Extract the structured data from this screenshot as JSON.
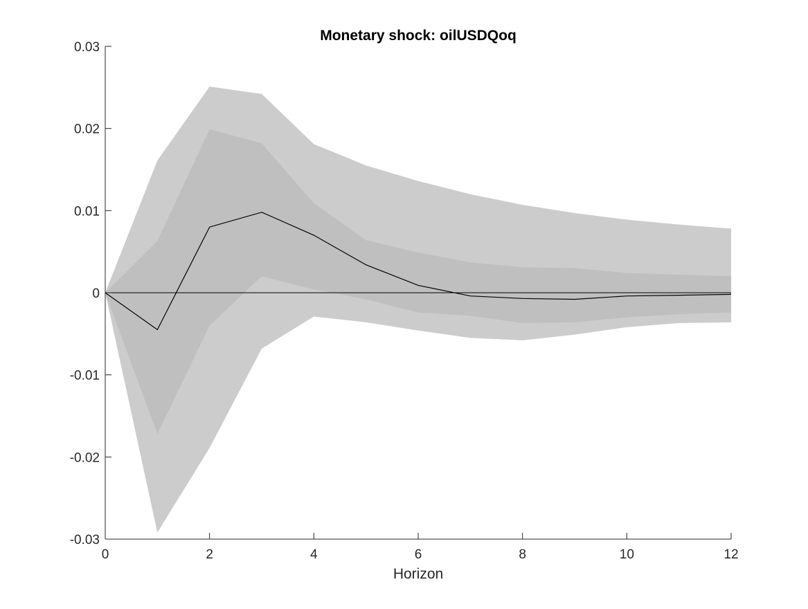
{
  "chart_data": {
    "type": "area",
    "title": "Monetary shock: oilUSDQoq",
    "xlabel": "Horizon",
    "ylabel": "",
    "xlim": [
      0,
      12
    ],
    "ylim": [
      -0.03,
      0.03
    ],
    "x_ticks": [
      0,
      2,
      4,
      6,
      8,
      10,
      12
    ],
    "x_tick_labels": [
      "0",
      "2",
      "4",
      "6",
      "8",
      "10",
      "12"
    ],
    "y_ticks": [
      -0.03,
      -0.02,
      -0.01,
      0,
      0.01,
      0.02,
      0.03
    ],
    "y_tick_labels": [
      "-0.03",
      "-0.02",
      "-0.01",
      "0",
      "0.01",
      "0.02",
      "0.03"
    ],
    "grid": false,
    "legend": "none",
    "x": [
      0,
      1,
      2,
      3,
      4,
      5,
      6,
      7,
      8,
      9,
      10,
      11,
      12
    ],
    "bands": [
      {
        "level": "outer",
        "color": "#cccccc",
        "upper": [
          0,
          0.0161,
          0.0251,
          0.0242,
          0.0181,
          0.0155,
          0.0136,
          0.012,
          0.0107,
          0.0097,
          0.0089,
          0.0083,
          0.0078
        ],
        "lower": [
          0,
          -0.0292,
          -0.0189,
          -0.0068,
          -0.0029,
          -0.0036,
          -0.0046,
          -0.0055,
          -0.0058,
          -0.0051,
          -0.0042,
          -0.0037,
          -0.0036
        ]
      },
      {
        "level": "inner",
        "color": "#bfbfbf",
        "upper": [
          0,
          0.0063,
          0.0199,
          0.0182,
          0.0109,
          0.0064,
          0.0049,
          0.0037,
          0.0031,
          0.003,
          0.0024,
          0.0022,
          0.002
        ],
        "lower": [
          0,
          -0.0172,
          -0.004,
          0.002,
          0.0004,
          -0.0008,
          -0.0024,
          -0.0028,
          -0.0037,
          -0.0036,
          -0.003,
          -0.0026,
          -0.0024
        ]
      }
    ],
    "series": [
      {
        "values": [
          0,
          -0.0045,
          0.008,
          0.0098,
          0.007,
          0.0034,
          0.0009,
          -0.0004,
          -0.0007,
          -0.0008,
          -0.0004,
          -0.0003,
          -0.0002
        ],
        "color": "#000000"
      }
    ],
    "zero_line": {
      "y": 0,
      "color": "#000000"
    }
  }
}
